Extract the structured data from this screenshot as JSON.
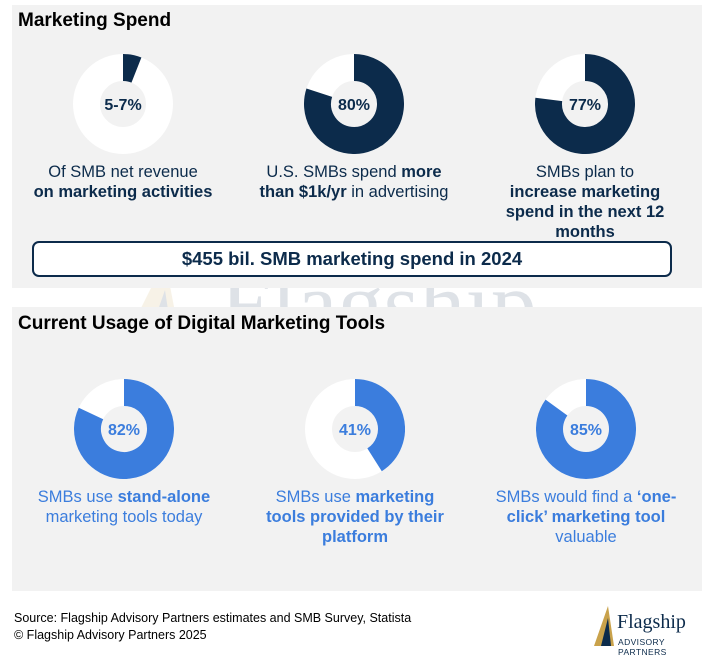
{
  "marketing_spend": {
    "title": "Marketing Spend",
    "items": [
      {
        "label": "5-7%",
        "caption_pre": "Of SMB net revenue",
        "caption_bold": "on marketing activities",
        "caption_post": ""
      },
      {
        "label": "80%",
        "caption_pre": "U.S. SMBs spend",
        "caption_bold": "more than $1k/yr",
        "caption_post": "in advertising"
      },
      {
        "label": "77%",
        "caption_pre": "SMBs plan to",
        "caption_bold": "increase marketing spend in the next 12 months",
        "caption_post": ""
      }
    ],
    "summary": "$455 bil. SMB marketing spend in 2024"
  },
  "digital_tools": {
    "title": "Current Usage of Digital Marketing Tools",
    "items": [
      {
        "label": "82%",
        "caption_pre": "SMBs use",
        "caption_bold": "stand-alone",
        "caption_post": "marketing tools today"
      },
      {
        "label": "41%",
        "caption_pre": "SMBs use",
        "caption_bold": "marketing tools provided by their platform",
        "caption_post": ""
      },
      {
        "label": "85%",
        "caption_pre": "SMBs would find a",
        "caption_bold": "‘one-click’ marketing tool",
        "caption_post": "valuable"
      }
    ]
  },
  "chart_data": [
    {
      "type": "pie",
      "title": "",
      "values": [
        6,
        94
      ],
      "color": "#0c2b4b"
    },
    {
      "type": "pie",
      "title": "",
      "values": [
        80,
        20
      ],
      "color": "#0c2b4b"
    },
    {
      "type": "pie",
      "title": "",
      "values": [
        77,
        23
      ],
      "color": "#0c2b4b"
    },
    {
      "type": "pie",
      "title": "",
      "values": [
        82,
        18
      ],
      "color": "#3b7ddd"
    },
    {
      "type": "pie",
      "title": "",
      "values": [
        41,
        59
      ],
      "color": "#3b7ddd"
    },
    {
      "type": "pie",
      "title": "",
      "values": [
        85,
        15
      ],
      "color": "#3b7ddd"
    }
  ],
  "footer": {
    "source": "Source: Flagship Advisory Partners estimates and SMB Survey, Statista",
    "copyright": "© Flagship Advisory Partners 2025"
  },
  "watermark": {
    "word": "Flagship",
    "sub": "ADVISORY PARTNERS"
  },
  "logo": {
    "word": "Flagship",
    "sub": "ADVISORY PARTNERS"
  },
  "colors": {
    "dark": "#0c2b4b",
    "blue": "#3b7ddd",
    "panel": "#f2f2f2"
  }
}
